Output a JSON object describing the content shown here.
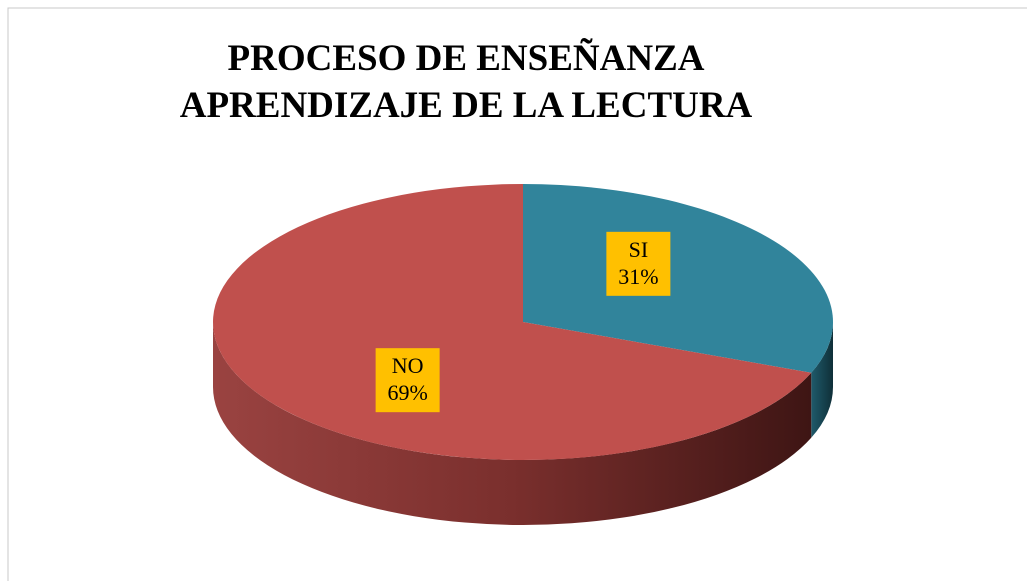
{
  "chart_data": {
    "type": "pie3d",
    "title": [
      "PROCESO DE ENSEÑANZA",
      "APRENDIZAJE  DE LA LECTURA"
    ],
    "categories": [
      "SI",
      "NO"
    ],
    "values": [
      31,
      69
    ],
    "value_labels": [
      "31%",
      "69%"
    ],
    "colors": [
      "#31849b",
      "#c0504d"
    ],
    "label_color": "#ffc000"
  }
}
